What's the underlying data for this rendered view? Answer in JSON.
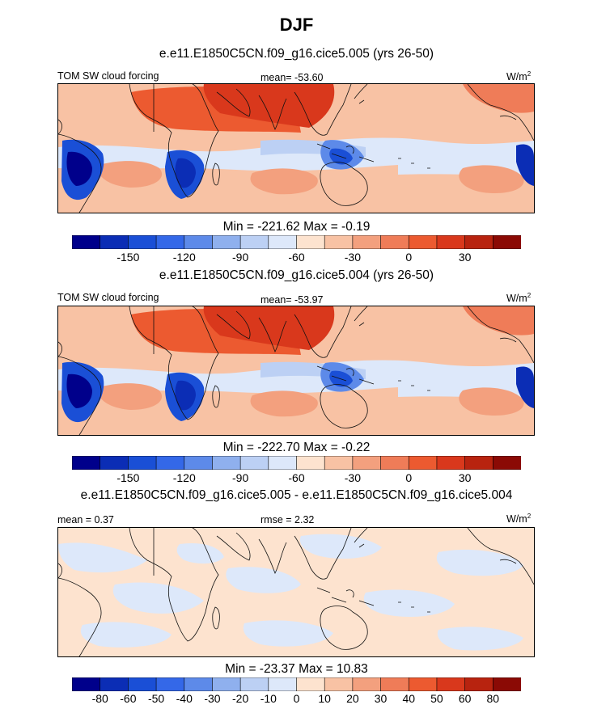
{
  "season": "DJF",
  "panels": [
    {
      "title": "e.e11.E1850C5CN.f09_g16.cice5.005 (yrs 26-50)",
      "left_label": "TOM SW cloud forcing",
      "center_label": "mean= -53.60",
      "unit": "W/m",
      "unit_sup": "2",
      "minmax": "Min = -221.62 Max =  -0.19",
      "field": "absolute",
      "colors": [
        "#00008b",
        "#0b2db5",
        "#1a4fd6",
        "#3468e8",
        "#5d8ae9",
        "#8fb0ee",
        "#bcd0f4",
        "#dde8fa",
        "#fde3cf",
        "#f8c2a4",
        "#f3a07e",
        "#ef7c58",
        "#ec5a30",
        "#d9381c",
        "#b8230f",
        "#8b0a05"
      ],
      "tick_labels": [
        "-150",
        "-120",
        "-90",
        "-60",
        "-30",
        "0",
        "30"
      ],
      "tick_positions": [
        2,
        4,
        6,
        8,
        10,
        12,
        14
      ]
    },
    {
      "title": "e.e11.E1850C5CN.f09_g16.cice5.004 (yrs 26-50)",
      "left_label": "TOM SW cloud forcing",
      "center_label": "mean= -53.97",
      "unit": "W/m",
      "unit_sup": "2",
      "minmax": "Min = -222.70 Max =  -0.22",
      "field": "absolute",
      "colors": [
        "#00008b",
        "#0b2db5",
        "#1a4fd6",
        "#3468e8",
        "#5d8ae9",
        "#8fb0ee",
        "#bcd0f4",
        "#dde8fa",
        "#fde3cf",
        "#f8c2a4",
        "#f3a07e",
        "#ef7c58",
        "#ec5a30",
        "#d9381c",
        "#b8230f",
        "#8b0a05"
      ],
      "tick_labels": [
        "-150",
        "-120",
        "-90",
        "-60",
        "-30",
        "0",
        "30"
      ],
      "tick_positions": [
        2,
        4,
        6,
        8,
        10,
        12,
        14
      ]
    },
    {
      "title": "e.e11.E1850C5CN.f09_g16.cice5.005 - e.e11.E1850C5CN.f09_g16.cice5.004",
      "left_label": "mean =   0.37",
      "center_label": "rmse =   2.32",
      "unit": "W/m",
      "unit_sup": "2",
      "minmax": "Min = -23.37 Max =  10.83",
      "field": "difference",
      "colors": [
        "#00008b",
        "#0b2db5",
        "#1a4fd6",
        "#3468e8",
        "#5d8ae9",
        "#8fb0ee",
        "#bcd0f4",
        "#dde8fa",
        "#fde3cf",
        "#f8c2a4",
        "#f3a07e",
        "#ef7c58",
        "#ec5a30",
        "#d9381c",
        "#b8230f",
        "#8b0a05"
      ],
      "tick_labels": [
        "-80",
        "-60",
        "-50",
        "-40",
        "-30",
        "-20",
        "-10",
        "0",
        "10",
        "20",
        "30",
        "40",
        "50",
        "60",
        "80"
      ],
      "tick_positions": [
        1,
        2,
        3,
        4,
        5,
        6,
        7,
        8,
        9,
        10,
        11,
        12,
        13,
        14,
        15
      ]
    }
  ]
}
